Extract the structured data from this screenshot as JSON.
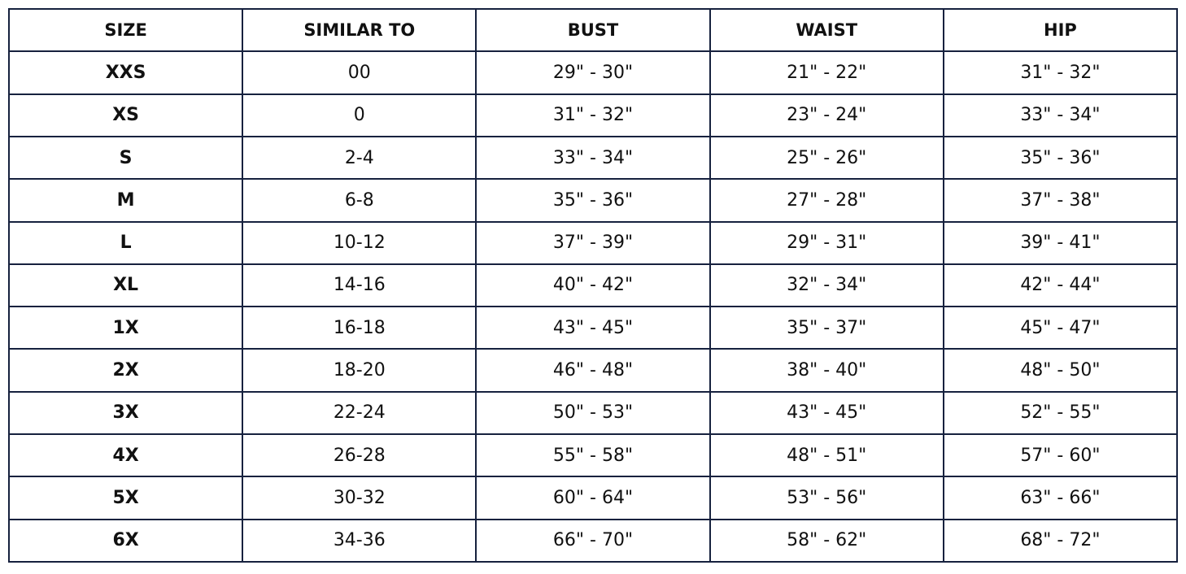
{
  "table": {
    "header": [
      "SIZE",
      "SIMILAR TO",
      "BUST",
      "WAIST",
      "HIP"
    ],
    "rows": [
      [
        "XXS",
        "00",
        "29\" - 30\"",
        "21\" - 22\"",
        "31\" - 32\""
      ],
      [
        "XS",
        "0",
        "31\" - 32\"",
        "23\" - 24\"",
        "33\" - 34\""
      ],
      [
        "S",
        "2-4",
        "33\" - 34\"",
        "25\" - 26\"",
        "35\" - 36\""
      ],
      [
        "M",
        "6-8",
        "35\" - 36\"",
        "27\" - 28\"",
        "37\" - 38\""
      ],
      [
        "L",
        "10-12",
        "37\" - 39\"",
        "29\" - 31\"",
        "39\" - 41\""
      ],
      [
        "XL",
        "14-16",
        "40\" - 42\"",
        "32\" - 34\"",
        "42\" - 44\""
      ],
      [
        "1X",
        "16-18",
        "43\" - 45\"",
        "35\" - 37\"",
        "45\" - 47\""
      ],
      [
        "2X",
        "18-20",
        "46\" - 48\"",
        "38\" - 40\"",
        "48\" - 50\""
      ],
      [
        "3X",
        "22-24",
        "50\" - 53\"",
        "43\" - 45\"",
        "52\" - 55\""
      ],
      [
        "4X",
        "26-28",
        "55\" - 58\"",
        "48\" - 51\"",
        "57\" - 60\""
      ],
      [
        "5X",
        "30-32",
        "60\" - 64\"",
        "53\" - 56\"",
        "63\" - 66\""
      ],
      [
        "6X",
        "34-36",
        "66\" - 70\"",
        "58\" - 62\"",
        "68\" - 72\""
      ]
    ]
  }
}
